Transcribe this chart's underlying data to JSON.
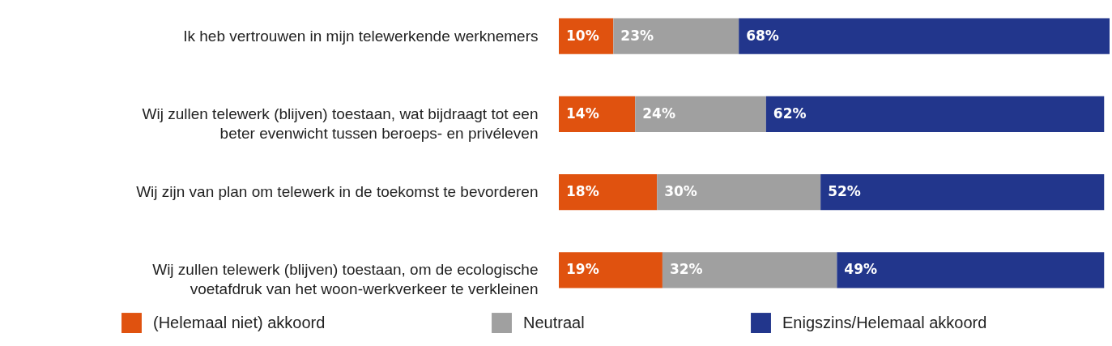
{
  "chart_data": {
    "type": "bar",
    "orientation": "horizontal",
    "stacked": true,
    "legend": "bottom",
    "grid": false,
    "categories": [
      "Ik heb vertrouwen in mijn telewerkende werknemers",
      "Wij zullen telewerk (blijven) toestaan, wat bijdraagt tot een\nbeter evenwicht tussen beroeps- en privéleven",
      "Wij zijn van plan om telewerk in de toekomst te bevorderen",
      "Wij zullen telewerk (blijven) toestaan, om de ecologische\nvoetafdruk van het woon-werkverkeer te verkleinen"
    ],
    "series": [
      {
        "name": "(Helemaal niet) akkoord",
        "color": "#e0520f",
        "values": [
          10,
          14,
          18,
          19
        ],
        "value_labels": [
          "10%",
          "14%",
          "18%",
          "19%"
        ]
      },
      {
        "name": "Neutraal",
        "color": "#a0a0a0",
        "values": [
          23,
          24,
          30,
          32
        ],
        "value_labels": [
          "23%",
          "24%",
          "30%",
          "32%"
        ]
      },
      {
        "name": "Enigszins/Helemaal akkoord",
        "color": "#22368c",
        "values": [
          68,
          62,
          52,
          49
        ],
        "value_labels": [
          "68%",
          "62%",
          "52%",
          "49%"
        ]
      }
    ]
  }
}
